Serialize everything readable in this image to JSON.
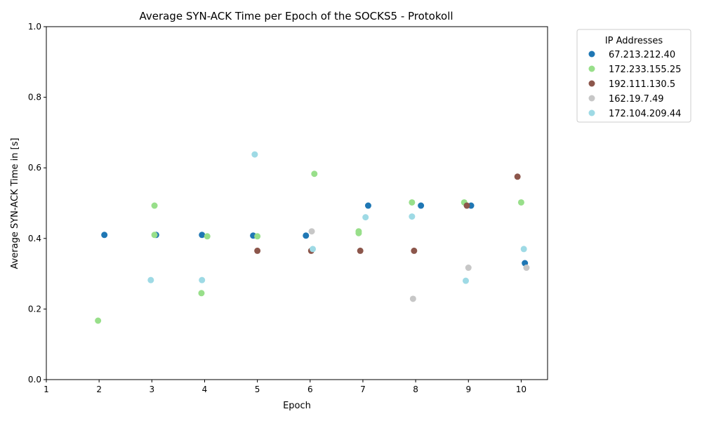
{
  "chart_data": {
    "type": "scatter",
    "title": "Average SYN-ACK Time per Epoch of the SOCKS5 - Protokoll",
    "xlabel": "Epoch",
    "ylabel": "Average SYN-ACK Time in [s]",
    "xlim": [
      1,
      10.5
    ],
    "ylim": [
      0,
      1.0
    ],
    "xticks": [
      1,
      2,
      3,
      4,
      5,
      6,
      7,
      8,
      9,
      10
    ],
    "yticks": [
      0.0,
      0.2,
      0.4,
      0.6,
      0.8,
      1.0
    ],
    "xtick_labels": [
      "1",
      "2",
      "3",
      "4",
      "5",
      "6",
      "7",
      "8",
      "9",
      "10"
    ],
    "ytick_labels": [
      "0.0",
      "0.2",
      "0.4",
      "0.6",
      "0.8",
      "1.0"
    ],
    "grid": false,
    "legend": {
      "title": "IP Addresses",
      "placement": "outside-top-right"
    },
    "series": [
      {
        "name": "67.213.212.40",
        "color": "#1f77b4",
        "points": [
          [
            2.1,
            0.41
          ],
          [
            3.08,
            0.41
          ],
          [
            3.95,
            0.41
          ],
          [
            4.92,
            0.408
          ],
          [
            5.92,
            0.408
          ],
          [
            7.1,
            0.493
          ],
          [
            8.1,
            0.493
          ],
          [
            9.05,
            0.493
          ],
          [
            10.07,
            0.33
          ]
        ]
      },
      {
        "name": "172.233.155.25",
        "color": "#98df8a",
        "points": [
          [
            1.98,
            0.167
          ],
          [
            3.05,
            0.493
          ],
          [
            3.05,
            0.41
          ],
          [
            3.94,
            0.245
          ],
          [
            4.05,
            0.406
          ],
          [
            5.0,
            0.406
          ],
          [
            6.08,
            0.583
          ],
          [
            6.92,
            0.42
          ],
          [
            6.92,
            0.415
          ],
          [
            7.93,
            0.502
          ],
          [
            8.92,
            0.502
          ],
          [
            10.0,
            0.502
          ]
        ]
      },
      {
        "name": "192.111.130.5",
        "color": "#8c564b",
        "points": [
          [
            5.0,
            0.365
          ],
          [
            6.02,
            0.365
          ],
          [
            6.95,
            0.365
          ],
          [
            7.97,
            0.365
          ],
          [
            8.97,
            0.493
          ],
          [
            9.93,
            0.575
          ]
        ]
      },
      {
        "name": "162.19.7.49",
        "color": "#c7c7c7",
        "points": [
          [
            6.03,
            0.42
          ],
          [
            7.95,
            0.229
          ],
          [
            9.0,
            0.317
          ],
          [
            10.1,
            0.317
          ]
        ]
      },
      {
        "name": "172.104.209.44",
        "color": "#9edae5",
        "points": [
          [
            2.98,
            0.282
          ],
          [
            3.95,
            0.282
          ],
          [
            4.95,
            0.638
          ],
          [
            6.05,
            0.37
          ],
          [
            7.05,
            0.46
          ],
          [
            7.93,
            0.462
          ],
          [
            8.95,
            0.28
          ],
          [
            10.05,
            0.37
          ]
        ]
      }
    ]
  }
}
